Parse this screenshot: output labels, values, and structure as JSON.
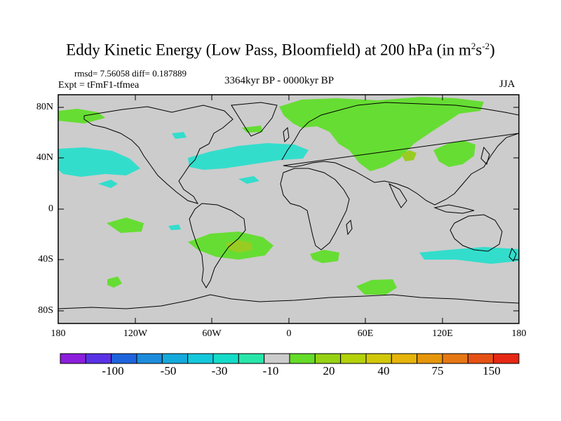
{
  "header": {
    "title": "Eddy Kinetic Energy (Low Pass, Bloomfield) at 200 hPa (in m",
    "title_sup1": "2",
    "title_mid": "s",
    "title_sup2": "-2",
    "title_end": ")",
    "stats": "rmsd= 7.56058 diff= 0.187889",
    "expt": "Expt = tFmF1-tfmea",
    "period": "3364kyr BP - 0000kyr BP",
    "season": "JJA"
  },
  "axes": {
    "lat_labels": [
      "80N",
      "40N",
      "0",
      "40S",
      "80S"
    ],
    "lon_labels": [
      "180",
      "120W",
      "60W",
      "0",
      "60E",
      "120E",
      "180"
    ]
  },
  "colorbar": {
    "labels": [
      "-100",
      "-50",
      "-30",
      "-10",
      "20",
      "40",
      "75",
      "150"
    ],
    "colors": [
      "#8c1edc",
      "#5a32e6",
      "#1e64dc",
      "#1e8cdc",
      "#14aadc",
      "#14c8dc",
      "#14dcc8",
      "#28e6aa",
      "#cccccc",
      "#64dc28",
      "#96d214",
      "#b4d20a",
      "#d2c80a",
      "#e6b40a",
      "#e6960a",
      "#e67814",
      "#e65014",
      "#e62814"
    ]
  },
  "colors": {
    "neutral": "#cccccc",
    "positive_low": "#66dd33",
    "positive_mid": "#99cc22",
    "negative_low": "#33ddcc"
  }
}
